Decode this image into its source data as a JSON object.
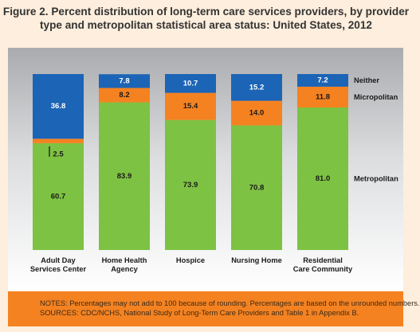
{
  "title": {
    "line1": "Figure 2. Percent distribution of long-term care services providers, by provider",
    "line2": "type and metropolitan statistical area status: United States, 2012"
  },
  "colors": {
    "metropolitan": "#7dc242",
    "micropolitan": "#f58220",
    "neither": "#1c64b6",
    "notes_bg": "#f58220"
  },
  "chart_data": {
    "type": "bar",
    "stacked": true,
    "categories": [
      [
        "Adult Day",
        "Services Center"
      ],
      [
        "Home Health",
        "Agency"
      ],
      [
        "Hospice"
      ],
      [
        "Nursing Home"
      ],
      [
        "Residential",
        "Care Community"
      ]
    ],
    "series": [
      {
        "name": "Metropolitan",
        "values": [
          60.7,
          83.9,
          73.9,
          70.8,
          81.0
        ],
        "labels": [
          "60.7",
          "83.9",
          "73.9",
          "70.8",
          "81.0"
        ]
      },
      {
        "name": "Micropolitan",
        "values": [
          2.5,
          8.2,
          15.4,
          14.0,
          11.8
        ],
        "labels": [
          "2.5",
          "8.2",
          "15.4",
          "14.0",
          "11.8"
        ]
      },
      {
        "name": "Neither",
        "values": [
          36.8,
          7.8,
          10.7,
          15.2,
          7.2
        ],
        "labels": [
          "36.8",
          "7.8",
          "10.7",
          "15.2",
          "7.2"
        ]
      }
    ],
    "ylim": [
      0,
      100
    ],
    "legend": "right, inline with top bar",
    "grid": false
  },
  "notes": {
    "line1": "NOTES: Percentages may not add to 100 because of rounding. Percentages are based on the unrounded numbers.",
    "line2": "SOURCES: CDC/NCHS, National Study of Long-Term Care Providers and Table 1 in Appendix B."
  }
}
